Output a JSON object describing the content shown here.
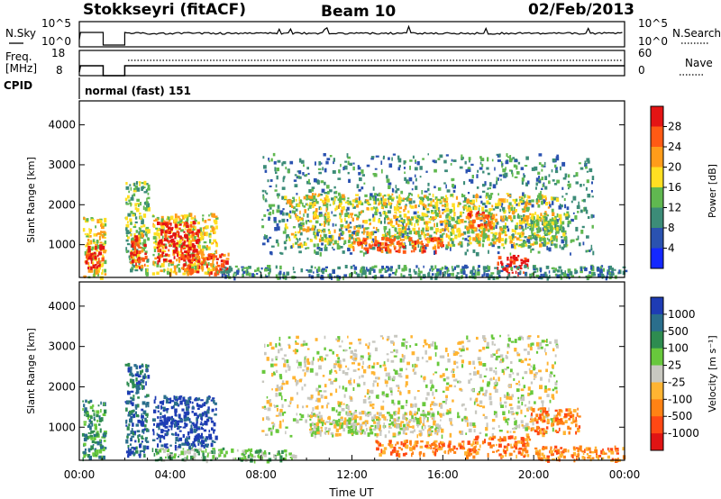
{
  "header": {
    "title": "Stokkseyri (fitACF)",
    "beam": "Beam 10",
    "date": "02/Feb/2013"
  },
  "noise_panel": {
    "left_label": "N.Sky",
    "right_label": "N.Search",
    "left_ticks": [
      "10^5",
      "10^0"
    ],
    "right_ticks": [
      "10^5",
      "10^0"
    ]
  },
  "freq_panel": {
    "left_label_1": "Freq.",
    "left_label_2": "[MHz]",
    "right_label": "Nave",
    "left_ticks": [
      "18",
      "8"
    ],
    "right_ticks": [
      "60",
      "0"
    ]
  },
  "cpid": {
    "label": "CPID",
    "value": "normal (fast) 151"
  },
  "power_panel": {
    "ylabel": "Slant Range [km]",
    "colorbar_label": "Power [dB]"
  },
  "velocity_panel": {
    "ylabel": "Slant Range [km]",
    "colorbar_label": "Velocity [m s⁻¹]"
  },
  "xaxis": {
    "label": "Time UT"
  },
  "chart_data": [
    {
      "type": "heatmap",
      "name": "power",
      "ylabel": "Slant Range [km]",
      "xlabel": "Time UT",
      "x_ticks": [
        "00:00",
        "04:00",
        "08:00",
        "12:00",
        "16:00",
        "20:00",
        "00:00"
      ],
      "y_ticks": [
        1000,
        2000,
        3000,
        4000
      ],
      "ylim": [
        180,
        4600
      ],
      "xlim_hours": [
        0,
        24
      ],
      "colorbar": {
        "label": "Power [dB]",
        "ticks": [
          4,
          8,
          12,
          16,
          20,
          24,
          28
        ],
        "colors": [
          "#1428ff",
          "#2a52b0",
          "#3c8c78",
          "#60b850",
          "#ffdf22",
          "#ff9c1a",
          "#ff5a14",
          "#e41414"
        ]
      },
      "regions": [
        {
          "x": [
            0.1,
            1.1
          ],
          "y": [
            200,
            1700
          ],
          "level": 4
        },
        {
          "x": [
            0.2,
            1.0
          ],
          "y": [
            450,
            1050
          ],
          "level": 7
        },
        {
          "x": [
            2.0,
            3.0
          ],
          "y": [
            300,
            2600
          ],
          "level": 3
        },
        {
          "x": [
            2.2,
            2.9
          ],
          "y": [
            450,
            1300
          ],
          "level": 6
        },
        {
          "x": [
            3.2,
            6.0
          ],
          "y": [
            300,
            1800
          ],
          "level": 4
        },
        {
          "x": [
            3.4,
            5.2
          ],
          "y": [
            600,
            1600
          ],
          "level": 7
        },
        {
          "x": [
            4.4,
            6.6
          ],
          "y": [
            300,
            800
          ],
          "level": 6
        },
        {
          "x": [
            8.0,
            22.6
          ],
          "y": [
            800,
            3300
          ],
          "level": 2
        },
        {
          "x": [
            9.0,
            21.0
          ],
          "y": [
            1000,
            2300
          ],
          "level": 4
        },
        {
          "x": [
            12.0,
            16.0
          ],
          "y": [
            850,
            1200
          ],
          "level": 6
        },
        {
          "x": [
            17.0,
            18.3
          ],
          "y": [
            1450,
            1850
          ],
          "level": 6
        },
        {
          "x": [
            18.3,
            19.7
          ],
          "y": [
            300,
            750
          ],
          "level": 7
        },
        {
          "x": [
            19.8,
            21.5
          ],
          "y": [
            1000,
            1800
          ],
          "level": 3
        },
        {
          "x": [
            6.0,
            24.0
          ],
          "y": [
            200,
            500
          ],
          "level": 2
        }
      ]
    },
    {
      "type": "heatmap",
      "name": "velocity",
      "ylabel": "Slant Range [km]",
      "xlabel": "Time UT",
      "x_ticks": [
        "00:00",
        "04:00",
        "08:00",
        "12:00",
        "16:00",
        "20:00",
        "00:00"
      ],
      "y_ticks": [
        1000,
        2000,
        3000,
        4000
      ],
      "ylim": [
        180,
        4600
      ],
      "xlim_hours": [
        0,
        24
      ],
      "colorbar": {
        "label": "Velocity [m s⁻¹]",
        "ticks": [
          1000,
          500,
          100,
          25,
          -25,
          -100,
          -500,
          -1000
        ],
        "colors": [
          "#1e3cb4",
          "#2a6e8c",
          "#2e8c50",
          "#68c83c",
          "#c8c8c0",
          "#ffb432",
          "#ff8214",
          "#ff4814",
          "#e01414"
        ]
      },
      "regions": [
        {
          "x": [
            0.1,
            1.1
          ],
          "y": [
            200,
            1700
          ],
          "level": 2
        },
        {
          "x": [
            2.0,
            3.0
          ],
          "y": [
            300,
            2600
          ],
          "level": 1
        },
        {
          "x": [
            3.2,
            6.0
          ],
          "y": [
            500,
            1800
          ],
          "level": 0
        },
        {
          "x": [
            3.2,
            8.0
          ],
          "y": [
            200,
            500
          ],
          "level": 3
        },
        {
          "x": [
            8.0,
            21.0
          ],
          "y": [
            800,
            3300
          ],
          "level": 4
        },
        {
          "x": [
            10.0,
            16.0
          ],
          "y": [
            850,
            1400
          ],
          "level": 4
        },
        {
          "x": [
            13.0,
            17.0
          ],
          "y": [
            350,
            700
          ],
          "level": 6
        },
        {
          "x": [
            17.0,
            19.8
          ],
          "y": [
            300,
            800
          ],
          "level": 6
        },
        {
          "x": [
            19.8,
            22.0
          ],
          "y": [
            900,
            1500
          ],
          "level": 6
        },
        {
          "x": [
            20.0,
            24.0
          ],
          "y": [
            200,
            550
          ],
          "level": 6
        },
        {
          "x": [
            7.0,
            9.5
          ],
          "y": [
            200,
            450
          ],
          "level": 3
        }
      ]
    }
  ]
}
